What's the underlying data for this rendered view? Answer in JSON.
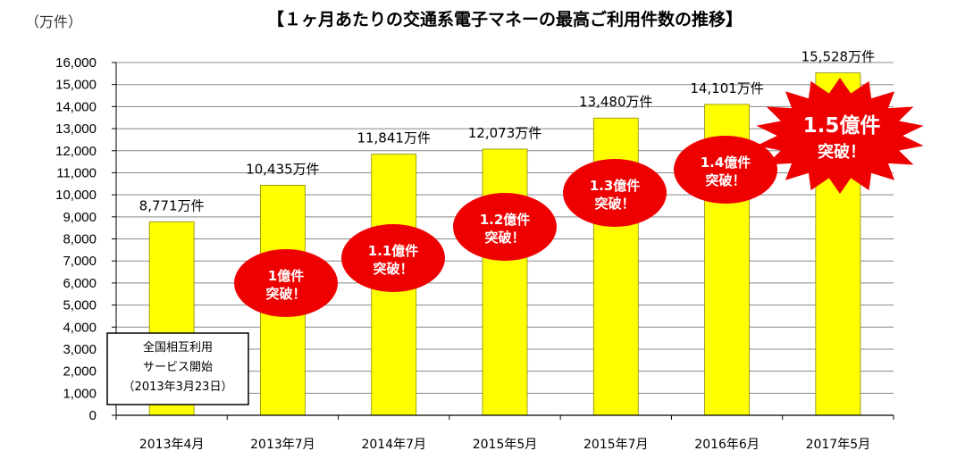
{
  "chart_data": {
    "type": "bar",
    "title": "【１ヶ月あたりの交通系電子マネーの最高ご利用件数の推移】",
    "unit_label": "（万件）",
    "categories": [
      "2013年4月",
      "2013年7月",
      "2014年7月",
      "2015年5月",
      "2015年7月",
      "2016年6月",
      "2017年5月"
    ],
    "values": [
      8771,
      10435,
      11841,
      12073,
      13480,
      14101,
      15528
    ],
    "value_labels": [
      "8,771万件",
      "10,435万件",
      "11,841万件",
      "12,073万件",
      "13,480万件",
      "14,101万件",
      "15,528万件"
    ],
    "ylim": [
      0,
      16000
    ],
    "yticks": [
      0,
      1000,
      2000,
      3000,
      4000,
      5000,
      6000,
      7000,
      8000,
      9000,
      10000,
      11000,
      12000,
      13000,
      14000,
      15000,
      16000
    ],
    "ytick_labels": [
      "0",
      "1,000",
      "2,000",
      "3,000",
      "4,000",
      "5,000",
      "6,000",
      "7,000",
      "8,000",
      "9,000",
      "10,000",
      "11,000",
      "12,000",
      "13,000",
      "14,000",
      "15,000",
      "16,000"
    ],
    "grid": true,
    "bar_color": "#ffff00",
    "bar_edge_color": "#888800",
    "callout_color": "#ee0000",
    "milestones": [
      {
        "category": "2013年7月",
        "lines": [
          "1億件",
          "突破！"
        ]
      },
      {
        "category": "2014年7月",
        "lines": [
          "1.1億件",
          "突破！"
        ]
      },
      {
        "category": "2015年5月",
        "lines": [
          "1.2億件",
          "突破！"
        ]
      },
      {
        "category": "2015年7月",
        "lines": [
          "1.3億件",
          "突破！"
        ]
      },
      {
        "category": "2016年6月",
        "lines": [
          "1.4億件",
          "突破！"
        ]
      },
      {
        "category": "2017年5月",
        "lines": [
          "1.5億件",
          "突破！"
        ],
        "shape": "starburst"
      }
    ],
    "note_lines": [
      "全国相互利用",
      "サービス開始",
      "（2013年3月23日）"
    ]
  }
}
